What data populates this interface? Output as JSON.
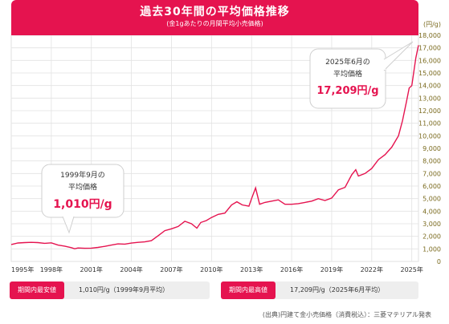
{
  "header": {
    "title": "過去30年間の平均価格推移",
    "subtitle": "(金1gあたりの月間平均小売価格)"
  },
  "callouts": {
    "low": {
      "date": "1999年9月の",
      "label": "平均価格",
      "value": "1,010円/g"
    },
    "high": {
      "date": "2025年6月の",
      "label": "平均価格",
      "value": "17,209円/g"
    }
  },
  "summary": {
    "min_label": "期間内最安値",
    "min_value": "1,010円/g（1999年9月平均）",
    "max_label": "期間内最高値",
    "max_value": "17,209円/g（2025年6月平均）"
  },
  "source": "(出典)円建て金小売価格（消費税込）：三菱マテリアル発表",
  "colors": {
    "accent": "#e5134f",
    "line": "#e5134f",
    "grid": "#e2e2e2",
    "axis_text": "#7a6a1e"
  },
  "chart_data": {
    "type": "line",
    "unit_label": "(円/g)",
    "xlim": [
      1995,
      2025.5
    ],
    "ylim": [
      0,
      18000
    ],
    "x_ticks": [
      1995,
      1998,
      2001,
      2004,
      2007,
      2010,
      2013,
      2016,
      2019,
      2022,
      2025
    ],
    "x_tick_labels": [
      "1995年",
      "1998年",
      "2001年",
      "2004年",
      "2007年",
      "2010年",
      "2013年",
      "2016年",
      "2019年",
      "2022年",
      "2025年"
    ],
    "y_ticks": [
      0,
      1000,
      2000,
      3000,
      4000,
      5000,
      6000,
      7000,
      8000,
      9000,
      10000,
      11000,
      12000,
      13000,
      14000,
      15000,
      16000,
      17000,
      18000
    ],
    "y_tick_labels": [
      "0",
      "1,000",
      "2,000",
      "3,000",
      "4,000",
      "5,000",
      "6,000",
      "7,000",
      "8,000",
      "9,000",
      "10,000",
      "11,000",
      "12,000",
      "13,000",
      "14,000",
      "15,000",
      "16,000",
      "17,000",
      "18,000"
    ],
    "grid": true,
    "series": [
      {
        "points": [
          [
            1995.0,
            1350
          ],
          [
            1995.5,
            1470
          ],
          [
            1996.0,
            1500
          ],
          [
            1996.5,
            1520
          ],
          [
            1997.0,
            1500
          ],
          [
            1997.5,
            1440
          ],
          [
            1998.0,
            1480
          ],
          [
            1998.5,
            1300
          ],
          [
            1999.0,
            1220
          ],
          [
            1999.5,
            1100
          ],
          [
            1999.75,
            1010
          ],
          [
            2000.0,
            1070
          ],
          [
            2000.5,
            1050
          ],
          [
            2001.0,
            1060
          ],
          [
            2001.5,
            1120
          ],
          [
            2002.0,
            1200
          ],
          [
            2002.5,
            1300
          ],
          [
            2003.0,
            1400
          ],
          [
            2003.5,
            1380
          ],
          [
            2004.0,
            1460
          ],
          [
            2004.5,
            1520
          ],
          [
            2005.0,
            1560
          ],
          [
            2005.5,
            1650
          ],
          [
            2006.0,
            2050
          ],
          [
            2006.5,
            2450
          ],
          [
            2007.0,
            2600
          ],
          [
            2007.5,
            2780
          ],
          [
            2008.0,
            3200
          ],
          [
            2008.5,
            3000
          ],
          [
            2008.9,
            2650
          ],
          [
            2009.2,
            3100
          ],
          [
            2009.6,
            3250
          ],
          [
            2010.0,
            3500
          ],
          [
            2010.5,
            3750
          ],
          [
            2011.0,
            3850
          ],
          [
            2011.5,
            4500
          ],
          [
            2011.9,
            4750
          ],
          [
            2012.3,
            4500
          ],
          [
            2012.8,
            4400
          ],
          [
            2013.0,
            5000
          ],
          [
            2013.3,
            5850
          ],
          [
            2013.6,
            4550
          ],
          [
            2014.0,
            4700
          ],
          [
            2014.5,
            4800
          ],
          [
            2015.0,
            4900
          ],
          [
            2015.5,
            4550
          ],
          [
            2016.0,
            4550
          ],
          [
            2016.5,
            4600
          ],
          [
            2017.0,
            4700
          ],
          [
            2017.5,
            4800
          ],
          [
            2018.0,
            5000
          ],
          [
            2018.5,
            4850
          ],
          [
            2019.0,
            5050
          ],
          [
            2019.5,
            5700
          ],
          [
            2020.0,
            5900
          ],
          [
            2020.5,
            6900
          ],
          [
            2020.8,
            7300
          ],
          [
            2021.0,
            6800
          ],
          [
            2021.5,
            7000
          ],
          [
            2022.0,
            7400
          ],
          [
            2022.5,
            8100
          ],
          [
            2023.0,
            8500
          ],
          [
            2023.5,
            9100
          ],
          [
            2024.0,
            10000
          ],
          [
            2024.3,
            11200
          ],
          [
            2024.6,
            12700
          ],
          [
            2024.8,
            13800
          ],
          [
            2025.0,
            14000
          ],
          [
            2025.3,
            16200
          ],
          [
            2025.5,
            17209
          ]
        ]
      }
    ]
  }
}
